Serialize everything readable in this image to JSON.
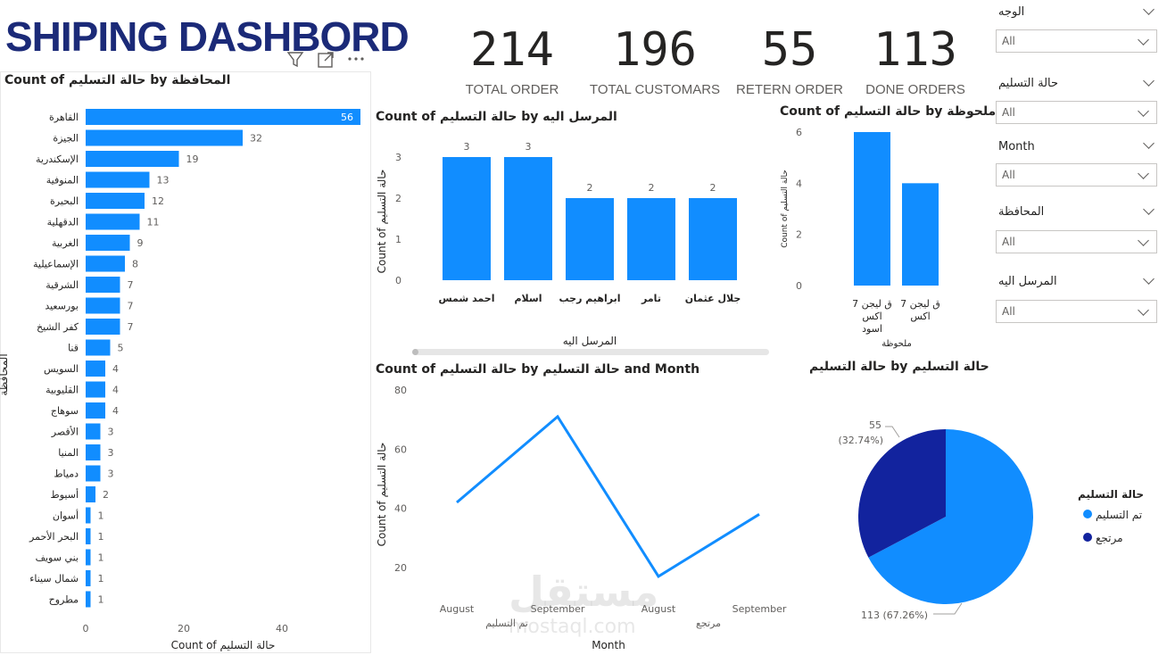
{
  "header": {
    "title": "SHIPING DASHBORD"
  },
  "kpis": [
    {
      "value": "214",
      "label": "TOTAL ORDER"
    },
    {
      "value": "196",
      "label": "TOTAL CUSTOMARS"
    },
    {
      "value": "55",
      "label": "RETERN ORDER"
    },
    {
      "value": "113",
      "label": "DONE ORDERS"
    }
  ],
  "visual_header_icons": [
    "filter-icon",
    "focus-mode-icon",
    "more-options-icon"
  ],
  "slicers": [
    {
      "label": "الوجه",
      "value": "All"
    },
    {
      "label": "حالة التسليم",
      "value": "All"
    },
    {
      "label": "Month",
      "value": "All"
    },
    {
      "label": "المحافظة",
      "value": "All"
    },
    {
      "label": "المرسل اليه",
      "value": "All"
    }
  ],
  "watermark": {
    "text": "مستقل",
    "sub": "mostaql.com"
  },
  "chart_data": [
    {
      "type": "bar",
      "orientation": "horizontal",
      "title": "Count of حالة التسليم by المحافظة",
      "xlabel": "Count of حالة التسليم",
      "ylabel": "المحافظة",
      "xlim": [
        0,
        56
      ],
      "xticks": [
        "0",
        "20",
        "40"
      ],
      "color": "#118dff",
      "categories": [
        "القاهرة",
        "الجيزة",
        "الإسكندرية",
        "المنوفية",
        "البحيرة",
        "الدقهلية",
        "الغربية",
        "الإسماعيلية",
        "الشرقية",
        "بورسعيد",
        "كفر الشيخ",
        "قنا",
        "السويس",
        "القليوبية",
        "سوهاج",
        "الأقصر",
        "المنيا",
        "دمياط",
        "أسيوط",
        "أسوان",
        "البحر الأحمر",
        "بني سويف",
        "شمال سيناء",
        "مطروح"
      ],
      "values": [
        56,
        32,
        19,
        13,
        12,
        11,
        9,
        8,
        7,
        7,
        7,
        5,
        4,
        4,
        4,
        3,
        3,
        3,
        2,
        1,
        1,
        1,
        1,
        1
      ],
      "labels": [
        "56",
        "32",
        "19",
        "13",
        "12",
        "11",
        "9",
        "8",
        "7",
        "7",
        "7",
        "5",
        "4",
        "4",
        "4",
        "3",
        "3",
        "3",
        "2",
        "1",
        "1",
        "1",
        "1",
        "1"
      ]
    },
    {
      "type": "bar",
      "title": "Count of حالة التسليم by المرسل اليه",
      "xlabel": "المرسل اليه",
      "ylabel": "Count of حالة التسليم",
      "ylim": [
        0,
        3
      ],
      "yticks": [
        "0",
        "1",
        "2",
        "3"
      ],
      "color": "#118dff",
      "categories": [
        "احمد شمس",
        "اسلام",
        "ابراهيم رجب",
        "تامر",
        "جلال عثمان"
      ],
      "values": [
        3,
        3,
        2,
        2,
        2
      ],
      "labels": [
        "3",
        "3",
        "2",
        "2",
        "2"
      ]
    },
    {
      "type": "bar",
      "title": "Count of حالة التسليم by ملحوظة",
      "xlabel": "ملحوظة",
      "ylabel": "Count of حالة التسليم",
      "ylim": [
        0,
        6
      ],
      "yticks": [
        "0",
        "2",
        "4",
        "6"
      ],
      "color": "#118dff",
      "categories": [
        [
          "ق ليجن 7",
          "اكس",
          "اسود"
        ],
        [
          "ق ليجن 7",
          "اكس"
        ]
      ],
      "values": [
        6,
        4
      ]
    },
    {
      "type": "line",
      "title": "Count of حالة التسليم by حالة التسليم and Month",
      "xlabel": "Month",
      "ylabel": "Count of حالة التسليم",
      "ylim": [
        20,
        80
      ],
      "yticks": [
        "20",
        "40",
        "60",
        "80"
      ],
      "color": "#118dff",
      "x": [
        "August",
        "September",
        "August",
        "September"
      ],
      "groups": [
        "تم التسليم",
        "مرتجع"
      ],
      "values": [
        42,
        71,
        17,
        38
      ]
    },
    {
      "type": "pie",
      "title": "حالة التسليم by حالة التسليم",
      "legend_title": "حالة التسليم",
      "legend": "right",
      "slices": [
        {
          "name": "تم التسليم",
          "value": 113,
          "label": "113 (67.26%)",
          "color": "#118dff"
        },
        {
          "name": "مرتجع",
          "value": 55,
          "label": "55",
          "pct": "(32.74%)",
          "color": "#12239e"
        }
      ]
    }
  ]
}
